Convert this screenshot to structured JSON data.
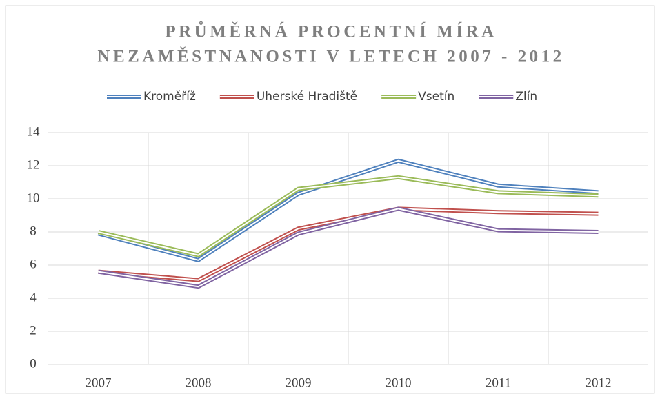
{
  "chart_data": {
    "type": "line",
    "title": [
      "PRŮMĚRNÁ PROCENTNÍ MÍRA",
      "NEZAMĚSTNANOSTI V LETECH 2007 - 2012"
    ],
    "categories": [
      "2007",
      "2008",
      "2009",
      "2010",
      "2011",
      "2012"
    ],
    "series": [
      {
        "name": "Kroměříž",
        "color": "#4f81bd",
        "values": [
          7.9,
          6.3,
          10.3,
          12.3,
          10.8,
          10.4
        ]
      },
      {
        "name": "Uherské Hradiště",
        "color": "#c0504d",
        "values": [
          5.6,
          5.1,
          8.2,
          9.4,
          9.2,
          9.1
        ]
      },
      {
        "name": "Vsetín",
        "color": "#9bbb59",
        "values": [
          8.0,
          6.6,
          10.6,
          11.3,
          10.4,
          10.2
        ]
      },
      {
        "name": "Zlín",
        "color": "#8064a2",
        "values": [
          5.6,
          4.7,
          7.9,
          9.4,
          8.1,
          8.0
        ]
      }
    ],
    "ylim": [
      0,
      14
    ],
    "yticks": [
      0,
      2,
      4,
      6,
      8,
      10,
      12,
      14
    ],
    "grid": true,
    "legend": "top"
  }
}
